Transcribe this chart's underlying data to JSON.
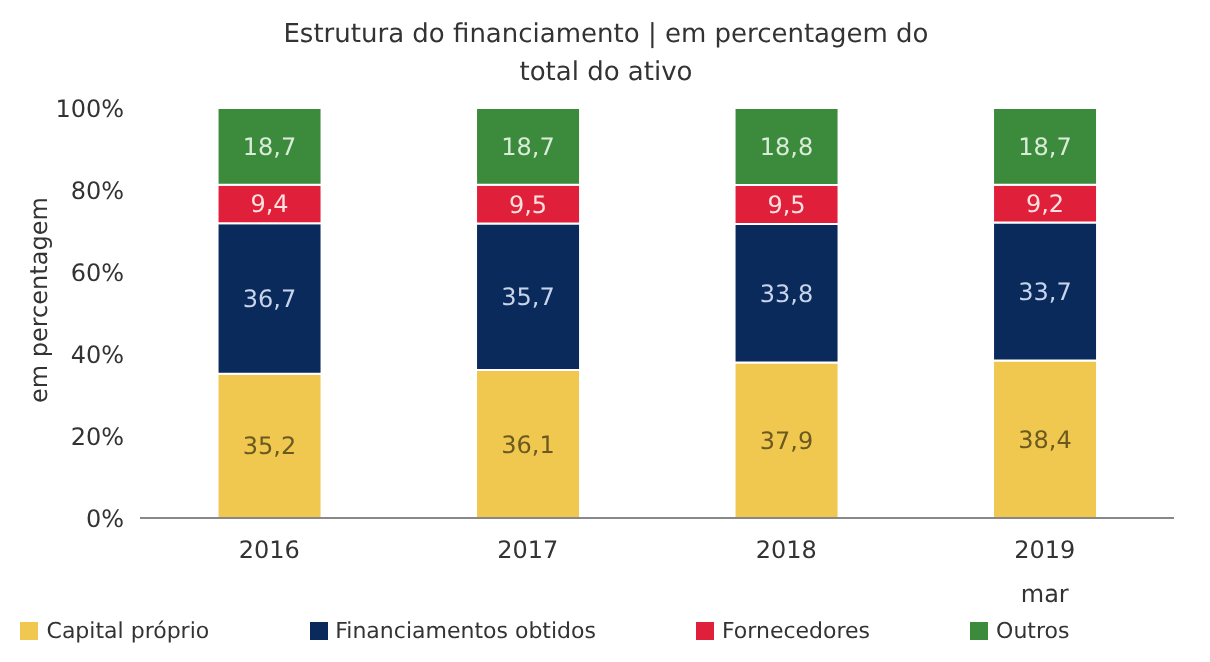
{
  "chart_data": {
    "type": "bar",
    "title": "Estrutura do financiamento  | em percentagem  do total do ativo",
    "ylabel": "em percentagem",
    "categories": [
      "2016",
      "2017",
      "2018",
      "2019\nmar"
    ],
    "stacked": true,
    "legend": "bottom",
    "grid": false,
    "series": [
      {
        "name": "Capital próprio",
        "color": "#f0c850",
        "values": [
          35.2,
          36.1,
          37.9,
          38.4
        ],
        "value_labels": [
          "35,2",
          "36,1",
          "37,9",
          "38,4"
        ]
      },
      {
        "name": "Financiamentos obtidos",
        "color": "#0a2a5c",
        "values": [
          36.7,
          35.7,
          33.8,
          33.7
        ],
        "value_labels": [
          "36,7",
          "35,7",
          "33,8",
          "33,7"
        ]
      },
      {
        "name": "Fornecedores",
        "color": "#e0203a",
        "values": [
          9.4,
          9.5,
          9.5,
          9.2
        ],
        "value_labels": [
          "9,4",
          "9,5",
          "9,5",
          "9,2"
        ]
      },
      {
        "name": "Outros",
        "color": "#3c8a3c",
        "values": [
          18.7,
          18.7,
          18.8,
          18.7
        ],
        "value_labels": [
          "18,7",
          "18,7",
          "18,8",
          "18,7"
        ]
      }
    ],
    "ylim": [
      0,
      100
    ],
    "yticks": [
      {
        "value": 0,
        "label": "0%"
      },
      {
        "value": 20,
        "label": "20%"
      },
      {
        "value": 40,
        "label": "40%"
      },
      {
        "value": 60,
        "label": "60%"
      },
      {
        "value": 80,
        "label": "80%"
      },
      {
        "value": 100,
        "label": "100%"
      }
    ]
  }
}
